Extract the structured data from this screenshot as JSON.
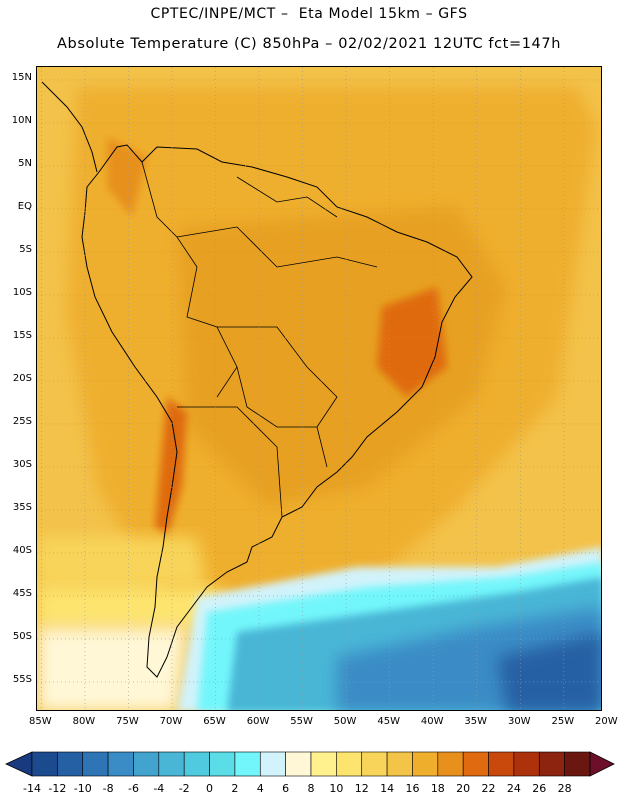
{
  "header": {
    "line1": "CPTEC/INPE/MCT –  Eta Model 15km – GFS",
    "line2": "Absolute Temperature (C) 850hPa – 02/02/2021 12UTC fct=147h"
  },
  "map": {
    "lat_labels": [
      "15N",
      "10N",
      "5N",
      "EQ",
      "5S",
      "10S",
      "15S",
      "20S",
      "25S",
      "30S",
      "35S",
      "40S",
      "45S",
      "50S",
      "55S"
    ],
    "lat_values": [
      15,
      10,
      5,
      0,
      -5,
      -10,
      -15,
      -20,
      -25,
      -30,
      -35,
      -40,
      -45,
      -50,
      -55
    ],
    "lon_labels": [
      "85W",
      "80W",
      "75W",
      "70W",
      "65W",
      "60W",
      "55W",
      "50W",
      "45W",
      "40W",
      "35W",
      "30W",
      "25W",
      "20W"
    ],
    "lon_values": [
      -85,
      -80,
      -75,
      -70,
      -65,
      -60,
      -55,
      -50,
      -45,
      -40,
      -35,
      -30,
      -25,
      -20
    ],
    "grid": true,
    "lon_range": [
      -85.5,
      -20.5
    ],
    "lat_range": [
      -58.5,
      16.5
    ]
  },
  "colorbar": {
    "labels": [
      "-14",
      "-12",
      "-10",
      "-8",
      "-6",
      "-4",
      "-2",
      "0",
      "2",
      "4",
      "6",
      "8",
      "10",
      "12",
      "14",
      "16",
      "18",
      "20",
      "22",
      "24",
      "26",
      "28"
    ],
    "colors": [
      "#1c4a8f",
      "#2660a4",
      "#2f75b6",
      "#3a8cc6",
      "#42a3cf",
      "#49b6d6",
      "#4fcadf",
      "#5bdde8",
      "#73f6fb",
      "#d2f3fb",
      "#fff7d6",
      "#fff18e",
      "#fde46e",
      "#f8d55a",
      "#f2c447",
      "#efaf2d",
      "#e7901c",
      "#df6a10",
      "#c9480c",
      "#ad320c",
      "#8c2410",
      "#6a1712"
    ],
    "under_color": "#1a3a80",
    "over_color": "#6d0f2a"
  }
}
